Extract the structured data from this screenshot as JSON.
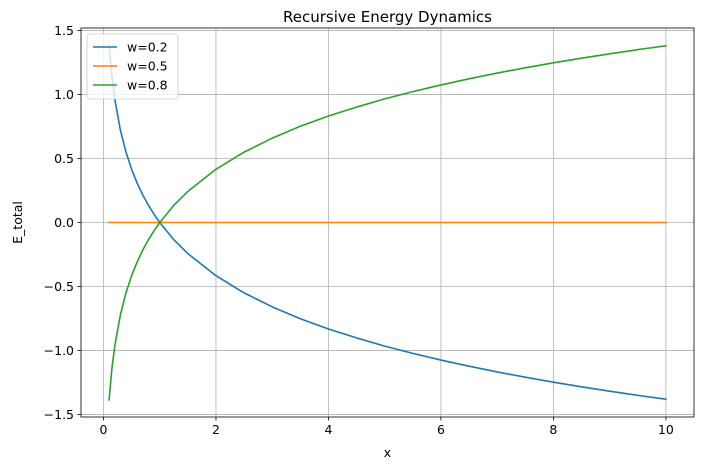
{
  "chart_data": {
    "type": "line",
    "title": "Recursive Energy Dynamics",
    "xlabel": "x",
    "ylabel": "E_total",
    "xlim": [
      -0.4,
      10.5
    ],
    "ylim": [
      -1.52,
      1.52
    ],
    "xticks": [
      0,
      2,
      4,
      6,
      8,
      10
    ],
    "yticks": [
      -1.5,
      -1.0,
      -0.5,
      0.0,
      0.5,
      1.0,
      1.5
    ],
    "xtick_labels": [
      "0",
      "2",
      "4",
      "6",
      "8",
      "10"
    ],
    "ytick_labels": [
      "−1.5",
      "−1.0",
      "−0.5",
      "0.0",
      "0.5",
      "1.0",
      "1.5"
    ],
    "grid": true,
    "legend_position": "top-left",
    "series": [
      {
        "name": "w=0.2",
        "color": "#1f77b4",
        "x": [
          0.1,
          0.15,
          0.2,
          0.3,
          0.4,
          0.5,
          0.6,
          0.7,
          0.8,
          0.9,
          1.0,
          1.25,
          1.5,
          2.0,
          2.5,
          3.0,
          3.5,
          4.0,
          4.5,
          5.0,
          5.5,
          6.0,
          6.5,
          7.0,
          7.5,
          8.0,
          8.5,
          9.0,
          9.5,
          10.0
        ],
        "y": [
          1.386,
          1.138,
          0.966,
          0.722,
          0.55,
          0.416,
          0.306,
          0.214,
          0.134,
          0.063,
          0.0,
          -0.134,
          -0.243,
          -0.416,
          -0.55,
          -0.659,
          -0.752,
          -0.832,
          -0.902,
          -0.966,
          -1.023,
          -1.075,
          -1.123,
          -1.168,
          -1.209,
          -1.248,
          -1.284,
          -1.318,
          -1.351,
          -1.381
        ]
      },
      {
        "name": "w=0.5",
        "color": "#ff7f0e",
        "x": [
          0.1,
          10.0
        ],
        "y": [
          0.0,
          0.0
        ]
      },
      {
        "name": "w=0.8",
        "color": "#2ca02c",
        "x": [
          0.1,
          0.15,
          0.2,
          0.3,
          0.4,
          0.5,
          0.6,
          0.7,
          0.8,
          0.9,
          1.0,
          1.25,
          1.5,
          2.0,
          2.5,
          3.0,
          3.5,
          4.0,
          4.5,
          5.0,
          5.5,
          6.0,
          6.5,
          7.0,
          7.5,
          8.0,
          8.5,
          9.0,
          9.5,
          10.0
        ],
        "y": [
          -1.386,
          -1.138,
          -0.966,
          -0.722,
          -0.55,
          -0.416,
          -0.306,
          -0.214,
          -0.134,
          -0.063,
          0.0,
          0.134,
          0.243,
          0.416,
          0.55,
          0.659,
          0.752,
          0.832,
          0.902,
          0.966,
          1.023,
          1.075,
          1.123,
          1.168,
          1.209,
          1.248,
          1.284,
          1.318,
          1.351,
          1.381
        ]
      }
    ]
  }
}
